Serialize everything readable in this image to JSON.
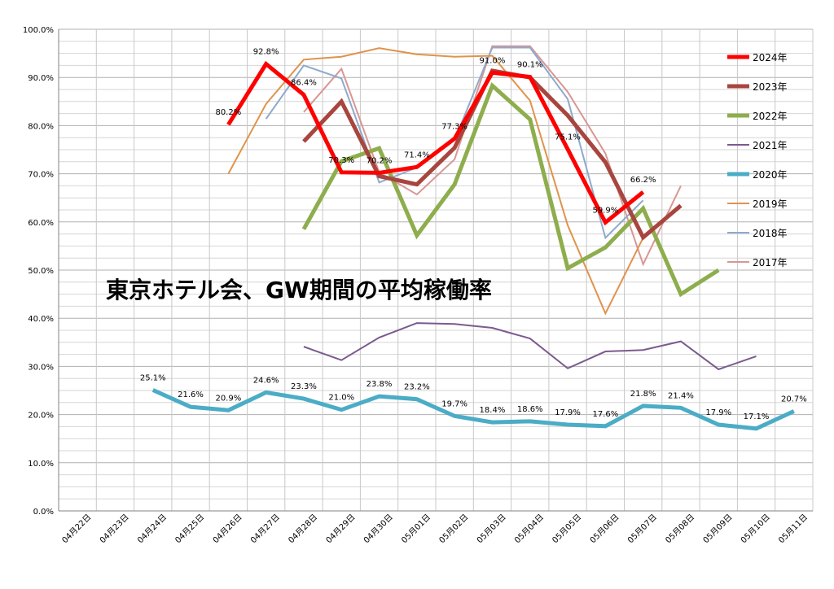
{
  "chart_data": {
    "type": "line",
    "title": "東京ホテル会、GW期間の平均稼働率",
    "xlabel": "",
    "ylabel": "",
    "ylim": [
      0,
      100
    ],
    "ytick_labels": [
      "0.0%",
      "10.0%",
      "20.0%",
      "30.0%",
      "40.0%",
      "50.0%",
      "60.0%",
      "70.0%",
      "80.0%",
      "90.0%",
      "100.0%"
    ],
    "categories": [
      "04月22日",
      "04月23日",
      "04月24日",
      "04月25日",
      "04月26日",
      "04月27日",
      "04月28日",
      "04月29日",
      "04月30日",
      "05月01日",
      "05月02日",
      "05月03日",
      "05月04日",
      "05月05日",
      "05月06日",
      "05月07日",
      "05月08日",
      "05月09日",
      "05月10日",
      "05月11日"
    ],
    "legend_position": "right",
    "grid": true,
    "series": [
      {
        "name": "2017年",
        "color": "#d99694",
        "width": 2,
        "values": [
          null,
          null,
          null,
          null,
          null,
          null,
          82.8,
          91.8,
          70.3,
          65.7,
          73.0,
          96.5,
          96.5,
          87.0,
          74.2,
          51.2,
          67.5,
          null,
          null,
          null
        ],
        "labels": []
      },
      {
        "name": "2018年",
        "color": "#8eaacc",
        "width": 2,
        "values": [
          null,
          null,
          null,
          null,
          null,
          81.4,
          92.5,
          89.8,
          68.2,
          71.3,
          77.0,
          96.2,
          96.2,
          85.5,
          56.7,
          64.5,
          null,
          null,
          null,
          null
        ],
        "labels": []
      },
      {
        "name": "2019年",
        "color": "#e0934c",
        "width": 2,
        "values": [
          null,
          null,
          null,
          null,
          70.0,
          84.5,
          93.7,
          94.3,
          96.1,
          94.8,
          94.3,
          94.5,
          85.2,
          59.3,
          41.0,
          56.7,
          null,
          null,
          null,
          null
        ],
        "labels": []
      },
      {
        "name": "2020年",
        "color": "#4bacc6",
        "width": 5,
        "values": [
          null,
          null,
          25.1,
          21.6,
          20.9,
          24.6,
          23.3,
          21.0,
          23.8,
          23.2,
          19.7,
          18.4,
          18.6,
          17.9,
          17.6,
          21.8,
          21.4,
          17.9,
          17.1,
          20.7
        ],
        "labels": [
          "",
          "",
          "25.1%",
          "21.6%",
          "20.9%",
          "24.6%",
          "23.3%",
          "21.0%",
          "23.8%",
          "23.2%",
          "19.7%",
          "18.4%",
          "18.6%",
          "17.9%",
          "17.6%",
          "21.8%",
          "21.4%",
          "17.9%",
          "17.1%",
          "20.7%"
        ]
      },
      {
        "name": "2021年",
        "color": "#7b5a8e",
        "width": 2,
        "values": [
          null,
          null,
          null,
          null,
          null,
          null,
          34.1,
          31.3,
          36.0,
          39.0,
          38.8,
          38.0,
          35.8,
          29.6,
          33.1,
          33.4,
          35.2,
          29.4,
          32.1,
          null
        ],
        "labels": []
      },
      {
        "name": "2022年",
        "color": "#8ead4d",
        "width": 5,
        "values": [
          null,
          null,
          null,
          null,
          null,
          null,
          58.5,
          72.6,
          75.3,
          57.2,
          67.8,
          88.3,
          81.3,
          50.4,
          54.7,
          62.8,
          45.0,
          50.0,
          null,
          null
        ],
        "labels": []
      },
      {
        "name": "2023年",
        "color": "#a8453e",
        "width": 5,
        "values": [
          null,
          null,
          null,
          null,
          null,
          null,
          76.7,
          85.0,
          69.5,
          67.8,
          75.4,
          91.4,
          90.0,
          82.1,
          72.4,
          56.8,
          63.4,
          null,
          null,
          null
        ],
        "labels": []
      },
      {
        "name": "2024年",
        "color": "#ff0000",
        "width": 5,
        "values": [
          null,
          null,
          null,
          null,
          80.2,
          92.8,
          86.4,
          70.3,
          70.2,
          71.4,
          77.3,
          91.0,
          90.1,
          75.1,
          59.9,
          66.2,
          null,
          null,
          null,
          null
        ],
        "labels": [
          "",
          "",
          "",
          "",
          "80.2%",
          "92.8%",
          "86.4%",
          "70.3%",
          "70.2%",
          "71.4%",
          "77.3%",
          "91.0%",
          "90.1%",
          "75.1%",
          "59.9%",
          "66.2%",
          "",
          "",
          "",
          ""
        ]
      }
    ],
    "legend_order": [
      "2024年",
      "2023年",
      "2022年",
      "2021年",
      "2020年",
      "2019年",
      "2018年",
      "2017年"
    ]
  }
}
